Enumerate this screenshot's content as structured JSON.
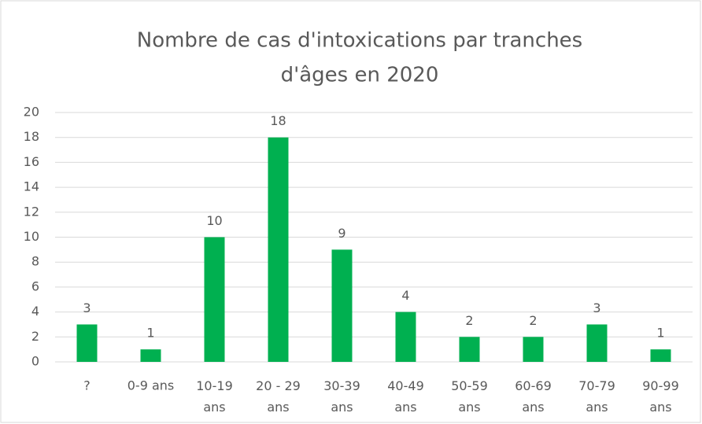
{
  "chart_data": {
    "type": "bar",
    "title": [
      "Nombre de cas d'intoxications par tranches",
      "d'âges en 2020"
    ],
    "categories": [
      "?",
      "0-9 ans",
      "10-19 ans",
      "20 - 29 ans",
      "30-39 ans",
      "40-49 ans",
      "50-59 ans",
      "60-69 ans",
      "70-79 ans",
      "90-99 ans"
    ],
    "values": [
      3,
      1,
      10,
      18,
      9,
      4,
      2,
      2,
      3,
      1
    ],
    "color": "#00b050",
    "ylim": [
      0,
      20
    ],
    "yticks": [
      0,
      2,
      4,
      6,
      8,
      10,
      12,
      14,
      16,
      18,
      20
    ],
    "grid": true,
    "data_labels": true
  }
}
